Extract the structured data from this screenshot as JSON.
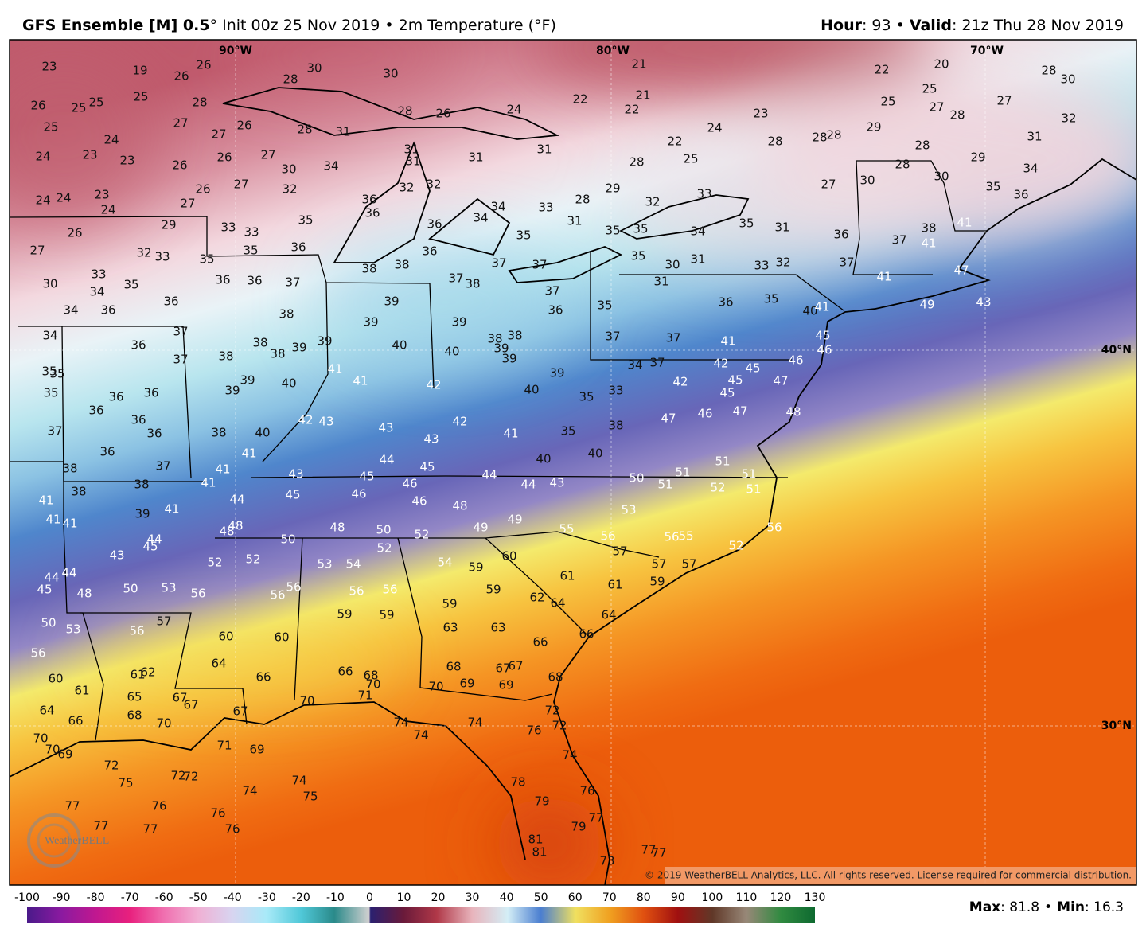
{
  "header": {
    "model": "GFS Ensemble [M] 0.5",
    "init": "° Init 00z 25 Nov 2019",
    "separator": "•",
    "field": "2m Temperature (°F)",
    "hour_label": "Hour",
    "hour": ": 93",
    "valid_label": "Valid",
    "valid": ": 21z Thu 28 Nov 2019"
  },
  "map": {
    "longitude_labels": [
      "90°W",
      "80°W",
      "70°W"
    ],
    "latitude_labels": [
      "40°N",
      "30°N"
    ],
    "station_values": [
      23,
      19,
      26,
      26,
      30,
      28,
      30,
      26,
      25,
      25,
      25,
      28,
      27,
      27,
      26,
      28,
      31,
      25,
      24,
      24,
      23,
      23,
      26,
      26,
      27,
      30,
      32,
      34,
      28,
      26,
      24,
      22,
      22,
      21,
      21,
      22,
      25,
      24,
      23,
      28,
      28,
      28,
      29,
      22,
      20,
      25,
      25,
      27,
      28,
      27,
      28,
      30,
      32,
      31,
      28,
      28,
      29,
      34,
      35,
      36,
      30,
      30,
      27,
      24,
      24,
      23,
      24,
      27,
      26,
      27,
      31,
      31,
      31,
      31,
      28,
      29,
      28,
      26,
      29,
      33,
      33,
      35,
      36,
      36,
      32,
      32,
      36,
      34,
      34,
      33,
      31,
      32,
      33,
      35,
      31,
      34,
      35,
      35,
      27,
      32,
      33,
      35,
      35,
      36,
      36,
      35,
      30,
      33,
      34,
      35,
      36,
      36,
      37,
      38,
      38,
      37,
      38,
      37,
      37,
      37,
      36,
      35,
      30,
      31,
      31,
      33,
      32,
      36,
      37,
      37,
      38,
      41,
      41,
      41,
      47,
      49,
      43,
      34,
      36,
      36,
      38,
      39,
      39,
      39,
      35,
      36,
      35,
      40,
      41,
      45,
      46,
      46,
      34,
      36,
      37,
      37,
      38,
      38,
      38,
      39,
      39,
      40,
      40,
      38,
      38,
      39,
      39,
      37,
      37,
      41,
      42,
      34,
      37,
      35,
      35,
      35,
      36,
      36,
      36,
      39,
      39,
      40,
      41,
      41,
      42,
      39,
      40,
      35,
      33,
      42,
      45,
      45,
      45,
      47,
      47,
      46,
      48,
      47,
      37,
      36,
      36,
      38,
      40,
      42,
      43,
      43,
      43,
      42,
      41,
      35,
      38,
      40,
      36,
      38,
      37,
      41,
      41,
      44,
      45,
      43,
      40,
      51,
      51,
      51,
      50,
      51,
      38,
      38,
      41,
      44,
      45,
      45,
      46,
      46,
      46,
      48,
      44,
      44,
      43,
      52,
      51,
      41,
      41,
      41,
      39,
      41,
      48,
      48,
      48,
      50,
      52,
      49,
      49,
      53,
      55,
      56,
      56,
      55,
      56,
      43,
      44,
      45,
      52,
      52,
      50,
      52,
      53,
      54,
      54,
      59,
      60,
      57,
      57,
      57,
      52,
      44,
      44,
      45,
      48,
      50,
      53,
      56,
      56,
      56,
      56,
      56,
      59,
      61,
      61,
      59,
      50,
      53,
      56,
      57,
      59,
      59,
      59,
      62,
      64,
      64,
      56,
      60,
      60,
      63,
      63,
      66,
      66,
      60,
      61,
      61,
      62,
      64,
      66,
      66,
      68,
      70,
      68,
      69,
      67,
      67,
      69,
      68,
      70,
      64,
      65,
      67,
      67,
      71,
      70,
      67,
      68,
      66,
      70,
      72,
      72,
      74,
      74,
      74,
      76,
      70,
      70,
      69,
      71,
      69,
      74,
      72,
      75,
      72,
      72,
      74,
      75,
      74,
      78,
      76,
      77,
      76,
      76,
      79,
      77,
      77,
      77,
      76,
      79,
      81,
      81,
      73,
      77,
      77
    ],
    "logo": "WeatherBELL",
    "copyright": "© 2019 WeatherBELL Analytics, LLC. All rights reserved. License required for commercial distribution."
  },
  "colorbar": {
    "ticks": [
      -100,
      -90,
      -80,
      -70,
      -60,
      -50,
      -40,
      -30,
      -20,
      -10,
      0,
      10,
      20,
      30,
      40,
      50,
      60,
      70,
      80,
      90,
      100,
      110,
      120,
      130
    ]
  },
  "stats": {
    "max_label": "Max",
    "max": ": 81.8",
    "separator": "•",
    "min_label": "Min",
    "min": ": 16.3"
  }
}
